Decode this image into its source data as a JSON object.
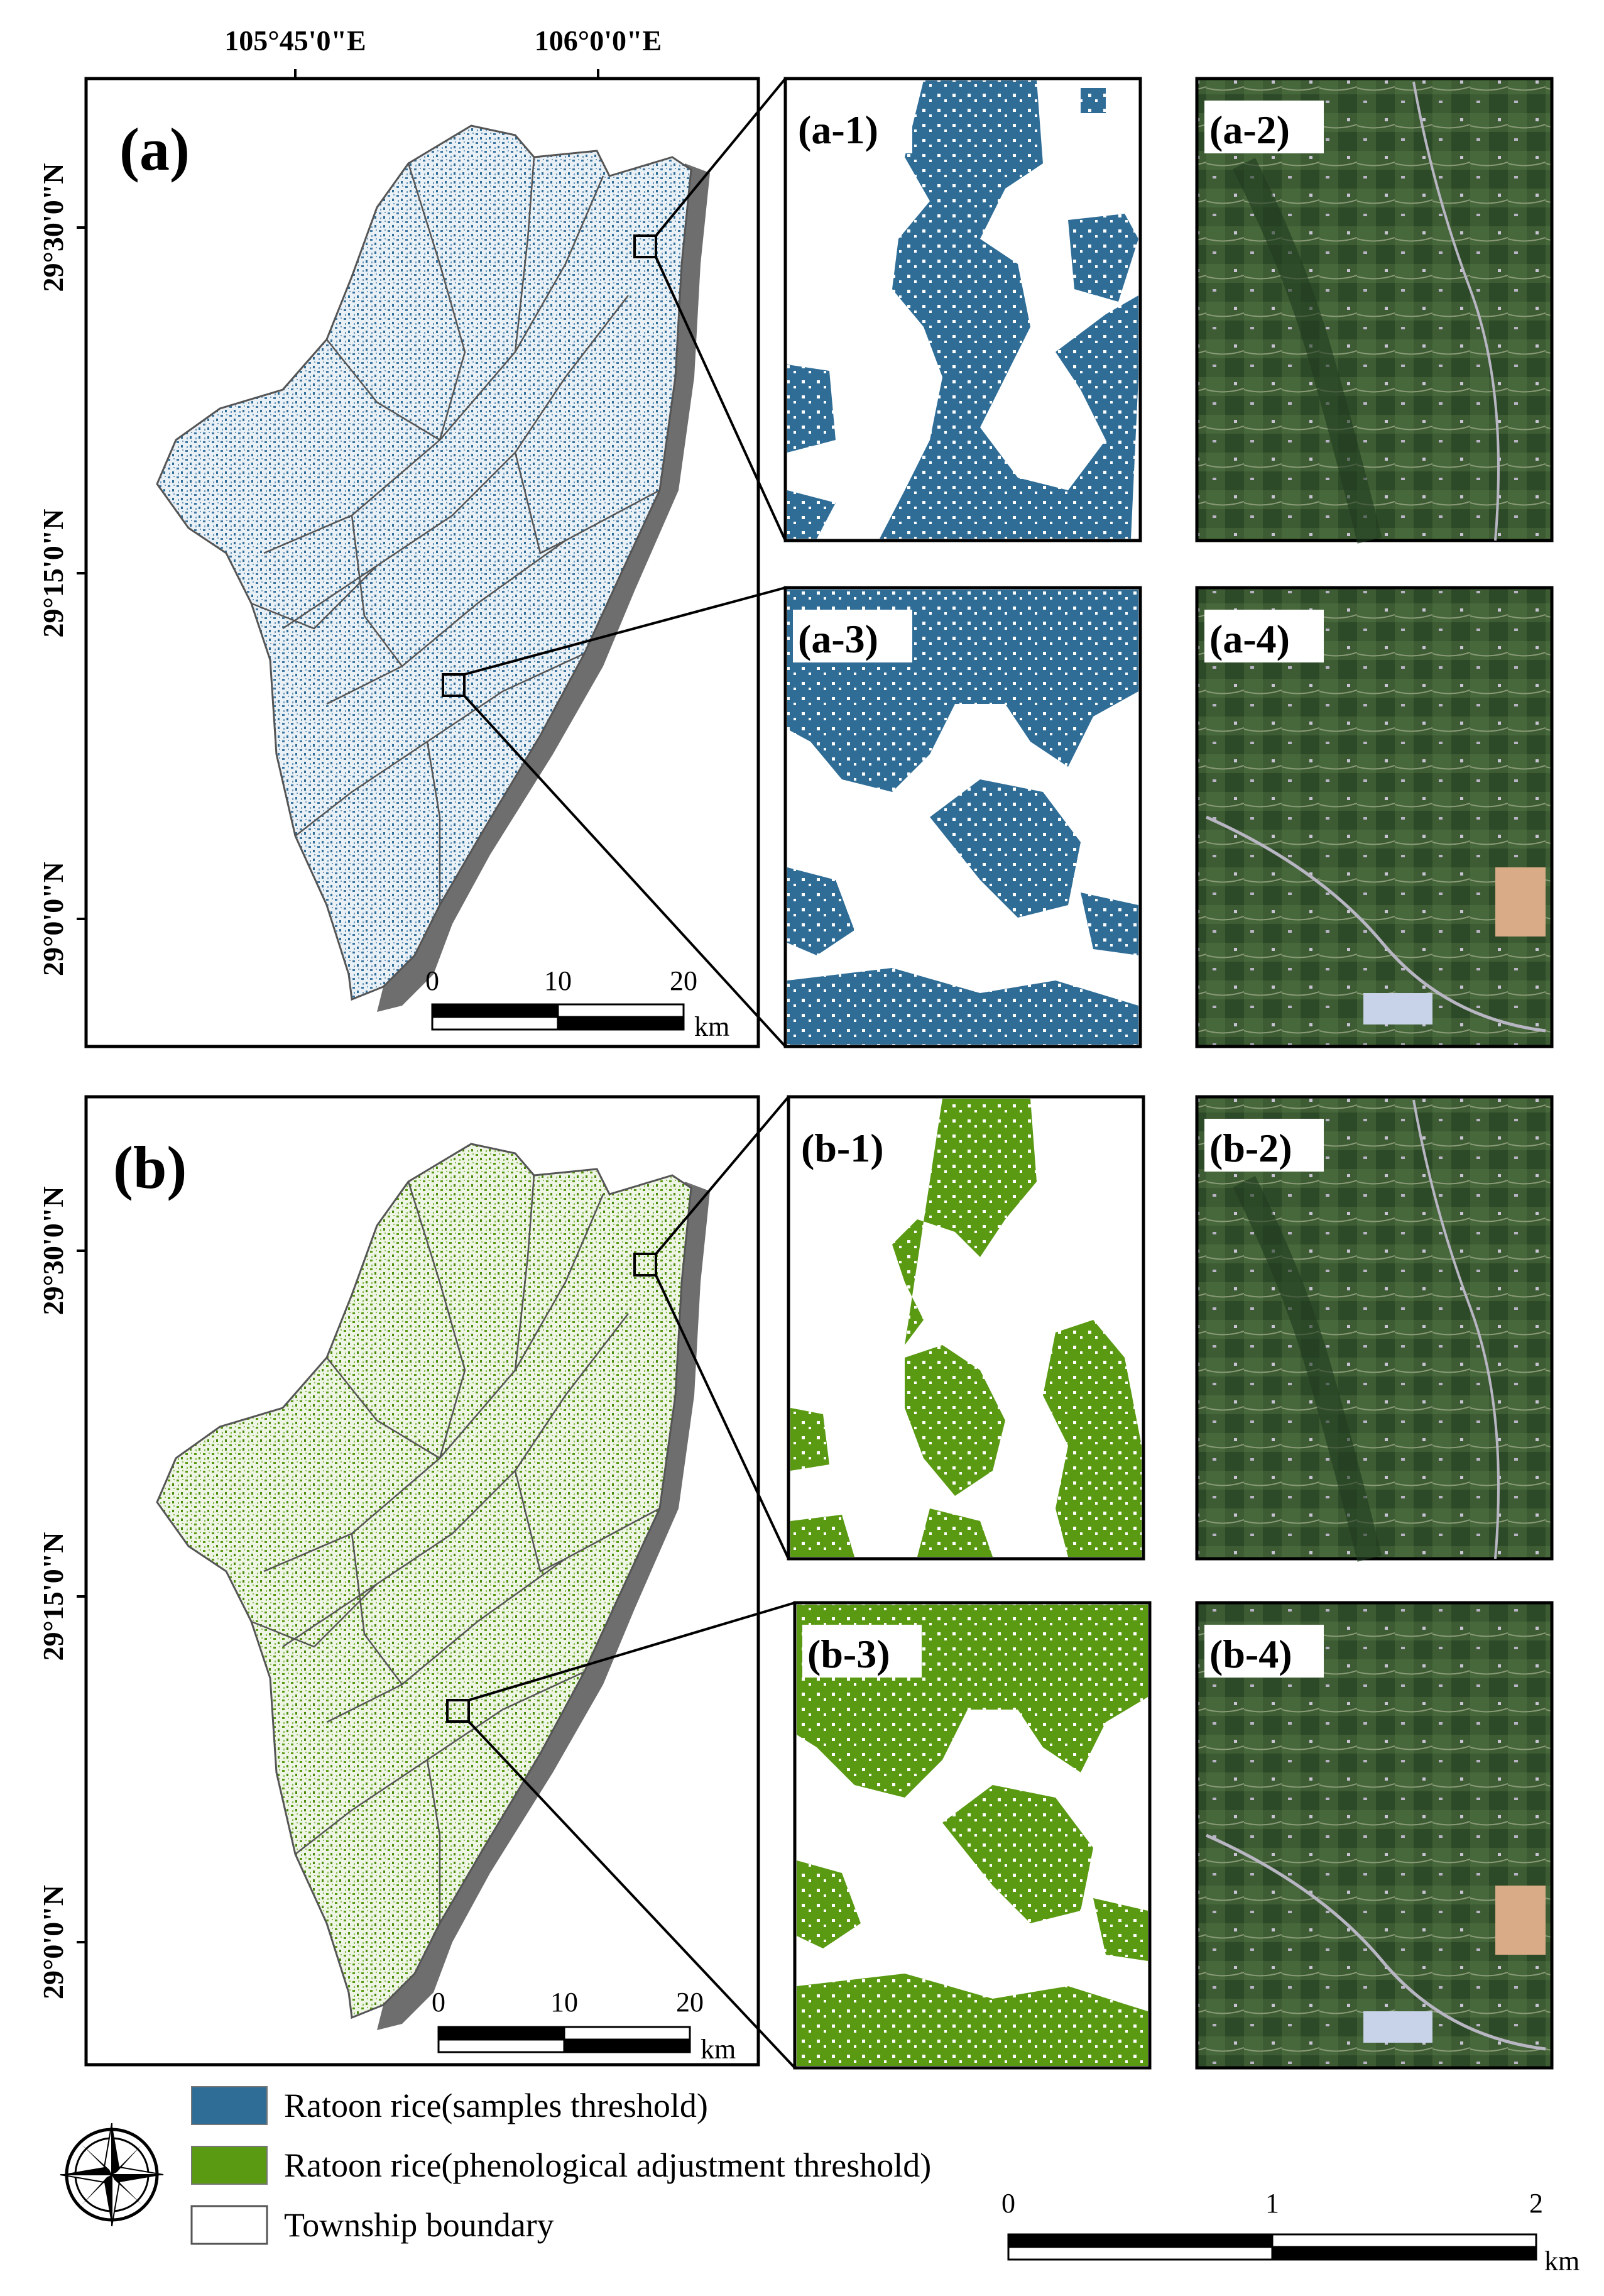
{
  "colors": {
    "samples_threshold": "#2f6d97",
    "phenological_threshold": "#5a9a12",
    "boundary": "#555555",
    "shadow": "#6e6e6e",
    "satellite_dark": "#2f4a2a",
    "settlement": "#c9c2cf"
  },
  "axes": {
    "top_ticks": [
      "105°45'0\"E",
      "106°0'0\"E"
    ],
    "left_ticks_a": [
      "29°30'0\"N",
      "29°15'0\"N",
      "29°0'0\"N"
    ],
    "left_ticks_b": [
      "29°30'0\"N",
      "29°15'0\"N",
      "29°0'0\"N"
    ]
  },
  "panels": {
    "a": {
      "label": "(a)",
      "sub": [
        "(a-1)",
        "(a-2)",
        "(a-3)",
        "(a-4)"
      ]
    },
    "b": {
      "label": "(b)",
      "sub": [
        "(b-1)",
        "(b-2)",
        "(b-3)",
        "(b-4)"
      ]
    }
  },
  "scalebar_main": {
    "ticks": [
      "0",
      "10",
      "20"
    ],
    "unit": "km"
  },
  "scalebar_detail": {
    "ticks": [
      "0",
      "1",
      "2"
    ],
    "unit": "km"
  },
  "legend": {
    "items": [
      {
        "label": "Ratoon rice(samples threshold)",
        "color": "#2f6d97"
      },
      {
        "label": "Ratoon rice(phenological adjustment threshold)",
        "color": "#5a9a12"
      },
      {
        "label": "Township boundary",
        "color": "#ffffff"
      }
    ]
  },
  "icons": {
    "north_arrow": "compass-rose-icon"
  }
}
